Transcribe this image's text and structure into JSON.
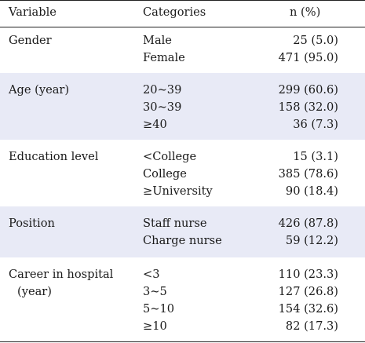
{
  "header": {
    "variable": "Variable",
    "categories": "Categories",
    "n_percent": "n (%)"
  },
  "groups": [
    {
      "variable": "Gender",
      "rows": [
        {
          "category": "Male",
          "value": "25 (5.0)"
        },
        {
          "category": "Female",
          "value": "471 (95.0)"
        }
      ]
    },
    {
      "variable": "Age (year)",
      "rows": [
        {
          "category": "20~39",
          "value": "299 (60.6)"
        },
        {
          "category": "30~39",
          "value": "158 (32.0)"
        },
        {
          "category": "≥40",
          "value": "36 (7.3)"
        }
      ]
    },
    {
      "variable": "Education level",
      "rows": [
        {
          "category": "<College",
          "value": "15 (3.1)"
        },
        {
          "category": "College",
          "value": "385 (78.6)"
        },
        {
          "category": "≥University",
          "value": "90 (18.4)"
        }
      ]
    },
    {
      "variable": "Position",
      "rows": [
        {
          "category": "Staff nurse",
          "value": "426 (87.8)"
        },
        {
          "category": "Charge nurse",
          "value": "59 (12.2)"
        }
      ]
    },
    {
      "variable": "Career in hospital",
      "variable_line2": "(year)",
      "rows": [
        {
          "category": "<3",
          "value": "110 (23.3)"
        },
        {
          "category": "3~5",
          "value": "127 (26.8)"
        },
        {
          "category": "5~10",
          "value": "154 (32.6)"
        },
        {
          "category": "≥10",
          "value": "82 (17.3)"
        }
      ]
    }
  ]
}
